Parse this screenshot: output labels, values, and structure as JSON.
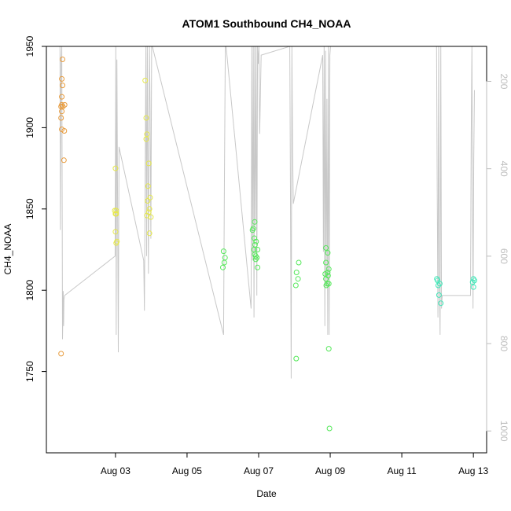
{
  "chart_data": {
    "type": "scatter",
    "title": "ATOM1 Southbound CH4_NOAA",
    "xlabel": "Date",
    "ylabel": "CH4_NOAA",
    "xlim": [
      0.0,
      12.3
    ],
    "ylim": [
      1700,
      1950
    ],
    "grid": false,
    "legend": "none",
    "x_ticks": [
      {
        "value": 1.93,
        "label": "Aug 03"
      },
      {
        "value": 3.93,
        "label": "Aug 05"
      },
      {
        "value": 5.93,
        "label": "Aug 07"
      },
      {
        "value": 7.93,
        "label": "Aug 09"
      },
      {
        "value": 9.93,
        "label": "Aug 11"
      },
      {
        "value": 11.93,
        "label": "Aug 13"
      }
    ],
    "y_ticks": [
      1750,
      1800,
      1850,
      1900,
      1950
    ],
    "y2": {
      "label": "",
      "ticks": [
        200,
        400,
        600,
        800,
        1000
      ],
      "range": [
        120,
        1050
      ],
      "reversed": true,
      "color": "#bdbdbd"
    },
    "series": [
      {
        "color": "#e89b3c",
        "points": [
          [
            0.45,
            1942
          ],
          [
            0.43,
            1930
          ],
          [
            0.45,
            1926
          ],
          [
            0.43,
            1919
          ],
          [
            0.43,
            1914
          ],
          [
            0.41,
            1913
          ],
          [
            0.46,
            1913
          ],
          [
            0.51,
            1914
          ],
          [
            0.43,
            1910
          ],
          [
            0.41,
            1906
          ],
          [
            0.43,
            1899
          ],
          [
            0.5,
            1898
          ],
          [
            0.49,
            1880
          ],
          [
            0.41,
            1761
          ]
        ]
      },
      {
        "color": "#e6e84a",
        "points": [
          [
            1.93,
            1875
          ],
          [
            1.91,
            1849
          ],
          [
            1.95,
            1849
          ],
          [
            1.93,
            1847
          ],
          [
            1.95,
            1847
          ],
          [
            1.93,
            1836
          ],
          [
            1.97,
            1830
          ],
          [
            1.95,
            1829
          ],
          [
            2.76,
            1929
          ],
          [
            2.79,
            1906
          ],
          [
            2.81,
            1896
          ],
          [
            2.79,
            1893
          ],
          [
            2.86,
            1878
          ],
          [
            2.84,
            1864
          ],
          [
            2.9,
            1857
          ],
          [
            2.83,
            1855
          ],
          [
            2.88,
            1850
          ],
          [
            2.86,
            1848
          ],
          [
            2.81,
            1846
          ],
          [
            2.88,
            1835
          ],
          [
            2.92,
            1845
          ]
        ]
      },
      {
        "color": "#55e85a",
        "points": [
          [
            4.95,
            1824
          ],
          [
            4.99,
            1820
          ],
          [
            4.97,
            1817
          ],
          [
            4.93,
            1814
          ],
          [
            5.82,
            1842
          ],
          [
            5.78,
            1838
          ],
          [
            5.76,
            1837
          ],
          [
            5.81,
            1832
          ],
          [
            5.86,
            1830
          ],
          [
            5.83,
            1828
          ],
          [
            5.8,
            1825
          ],
          [
            5.9,
            1825
          ],
          [
            5.82,
            1822
          ],
          [
            5.85,
            1821
          ],
          [
            5.88,
            1820
          ],
          [
            5.85,
            1819
          ],
          [
            5.9,
            1814
          ],
          [
            7.05,
            1817
          ],
          [
            6.99,
            1811
          ],
          [
            7.03,
            1807
          ],
          [
            6.97,
            1803
          ],
          [
            6.98,
            1758
          ],
          [
            7.81,
            1826
          ],
          [
            7.86,
            1823
          ],
          [
            7.81,
            1817
          ],
          [
            7.89,
            1813
          ],
          [
            7.86,
            1811
          ],
          [
            7.79,
            1810
          ],
          [
            7.87,
            1809
          ],
          [
            7.81,
            1807
          ],
          [
            7.89,
            1804
          ],
          [
            7.85,
            1804
          ],
          [
            7.82,
            1803
          ],
          [
            7.89,
            1764
          ],
          [
            7.91,
            1715
          ]
        ]
      },
      {
        "color": "#3ee8b8",
        "points": [
          [
            10.91,
            1807
          ],
          [
            10.93,
            1806
          ],
          [
            10.99,
            1804
          ],
          [
            10.95,
            1803
          ],
          [
            10.97,
            1797
          ],
          [
            11.02,
            1792
          ],
          [
            11.93,
            1807
          ],
          [
            11.96,
            1806
          ],
          [
            11.91,
            1805
          ],
          [
            11.93,
            1802
          ]
        ]
      }
    ],
    "altitude_track": [
      [
        0.38,
        120
      ],
      [
        0.39,
        540
      ],
      [
        0.41,
        160
      ],
      [
        0.43,
        120
      ],
      [
        0.45,
        790
      ],
      [
        0.47,
        680
      ],
      [
        0.48,
        760
      ],
      [
        0.49,
        700
      ],
      [
        0.51,
        690
      ],
      [
        1.92,
        600
      ],
      [
        1.94,
        120
      ],
      [
        1.95,
        780
      ],
      [
        1.97,
        150
      ],
      [
        2.01,
        820
      ],
      [
        2.03,
        350
      ],
      [
        2.72,
        610
      ],
      [
        2.74,
        725
      ],
      [
        2.78,
        120
      ],
      [
        2.8,
        600
      ],
      [
        2.82,
        120
      ],
      [
        2.85,
        640
      ],
      [
        2.88,
        120
      ],
      [
        2.9,
        270
      ],
      [
        2.92,
        560
      ],
      [
        2.94,
        120
      ],
      [
        2.96,
        120
      ],
      [
        4.95,
        780
      ],
      [
        4.97,
        480
      ],
      [
        5.0,
        120
      ],
      [
        5.02,
        120
      ],
      [
        5.72,
        720
      ],
      [
        5.74,
        120
      ],
      [
        5.76,
        610
      ],
      [
        5.78,
        120
      ],
      [
        5.8,
        740
      ],
      [
        5.82,
        120
      ],
      [
        5.84,
        530
      ],
      [
        5.86,
        120
      ],
      [
        5.88,
        690
      ],
      [
        5.9,
        120
      ],
      [
        5.92,
        160
      ],
      [
        5.94,
        120
      ],
      [
        5.96,
        320
      ],
      [
        6.0,
        140
      ],
      [
        6.8,
        120
      ],
      [
        6.82,
        460
      ],
      [
        6.84,
        880
      ],
      [
        6.86,
        120
      ],
      [
        6.88,
        360
      ],
      [
        6.9,
        480
      ],
      [
        7.72,
        140
      ],
      [
        7.74,
        590
      ],
      [
        7.76,
        120
      ],
      [
        7.78,
        760
      ],
      [
        7.8,
        130
      ],
      [
        7.82,
        670
      ],
      [
        7.84,
        240
      ],
      [
        7.86,
        780
      ],
      [
        7.88,
        120
      ],
      [
        7.9,
        780
      ],
      [
        7.92,
        140
      ],
      [
        7.94,
        120
      ],
      [
        10.9,
        120
      ],
      [
        10.92,
        460
      ],
      [
        10.94,
        740
      ],
      [
        10.96,
        120
      ],
      [
        10.98,
        650
      ],
      [
        11.0,
        780
      ],
      [
        11.02,
        120
      ],
      [
        11.04,
        720
      ],
      [
        11.06,
        690
      ],
      [
        11.85,
        690
      ],
      [
        11.87,
        320
      ],
      [
        11.89,
        120
      ],
      [
        11.92,
        720
      ],
      [
        11.94,
        380
      ],
      [
        11.96,
        220
      ]
    ]
  }
}
